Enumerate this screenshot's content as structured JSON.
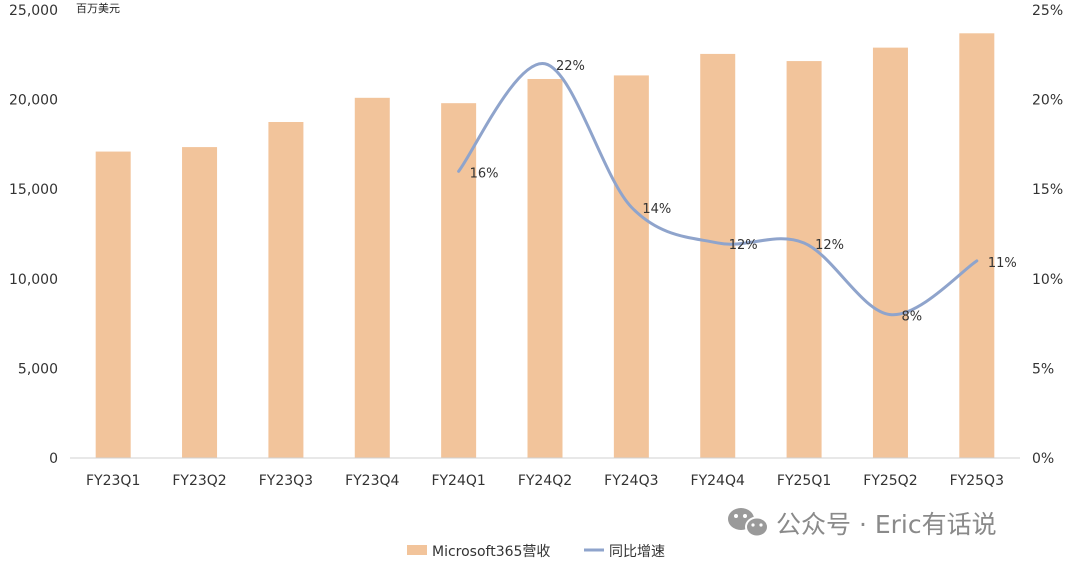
{
  "chart_data": {
    "type": "bar",
    "title": "",
    "unit_label": "百万美元",
    "categories": [
      "FY23Q1",
      "FY23Q2",
      "FY23Q3",
      "FY23Q4",
      "FY24Q1",
      "FY24Q2",
      "FY24Q3",
      "FY24Q4",
      "FY25Q1",
      "FY25Q2",
      "FY25Q3"
    ],
    "series": [
      {
        "name": "Microsoft365营收",
        "type": "bar",
        "axis": "left",
        "color": "#F2C49B",
        "values": [
          17100,
          17350,
          18750,
          20100,
          19800,
          21150,
          21350,
          22550,
          22150,
          22900,
          23700
        ]
      },
      {
        "name": "同比增速",
        "type": "line",
        "axis": "right",
        "color": "#8FA4CC",
        "values": [
          null,
          null,
          null,
          null,
          0.16,
          0.22,
          0.14,
          0.12,
          0.12,
          0.08,
          0.11
        ],
        "labels": [
          "",
          "",
          "",
          "",
          "16%",
          "22%",
          "14%",
          "12%",
          "12%",
          "8%",
          "11%"
        ]
      }
    ],
    "y_left": {
      "min": 0,
      "max": 25000,
      "ticks": [
        "0",
        "5,000",
        "10,000",
        "15,000",
        "20,000",
        "25,000"
      ]
    },
    "y_right": {
      "min": 0,
      "max": 0.25,
      "ticks": [
        "0%",
        "5%",
        "10%",
        "15%",
        "20%",
        "25%"
      ]
    },
    "grid": false,
    "legend_position": "bottom"
  },
  "watermark": {
    "text": "公众号 · Eric有话说",
    "icon": "wechat-icon"
  }
}
